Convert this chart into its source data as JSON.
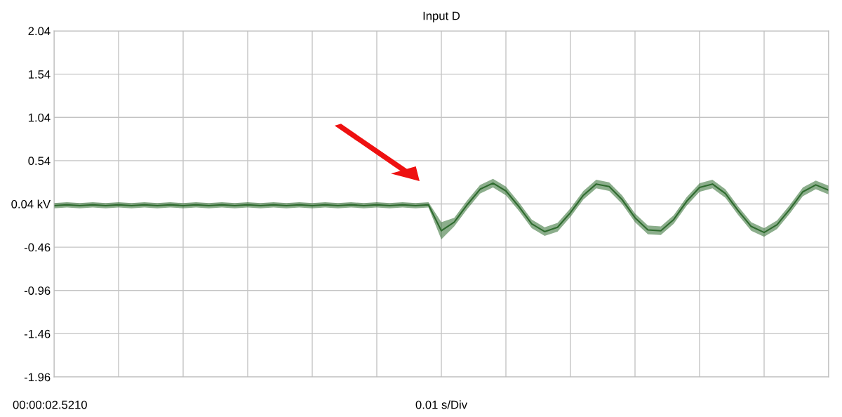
{
  "chart_data": {
    "type": "line",
    "title": "Input D",
    "annotations": [
      "00:00:02.5210",
      "0.01 s/Div"
    ],
    "categories": [
      null,
      null,
      null,
      null,
      null,
      null,
      null,
      null,
      null,
      null,
      null,
      null,
      null,
      null,
      null,
      null,
      null,
      null,
      null,
      null,
      null,
      null,
      null,
      null,
      null,
      null,
      null,
      null,
      null,
      null,
      null,
      null,
      null,
      null,
      null,
      null,
      null,
      null,
      null,
      null,
      null,
      null,
      null,
      null,
      null,
      null,
      null,
      null,
      null,
      null,
      null,
      null,
      null,
      null,
      null,
      null,
      null,
      null,
      null,
      null,
      null
    ],
    "series": [
      {
        "color": "#2e6b2e",
        "values": [
          0.02,
          0.03,
          0.02,
          0.03,
          0.02,
          0.03,
          0.02,
          0.03,
          0.02,
          0.03,
          0.02,
          0.03,
          0.02,
          0.03,
          0.02,
          0.03,
          0.02,
          0.03,
          0.02,
          0.03,
          0.02,
          0.03,
          0.02,
          0.03,
          0.02,
          0.03,
          0.02,
          0.03,
          0.02,
          0.03,
          -0.27,
          -0.17,
          0.03,
          0.21,
          0.28,
          0.19,
          0.01,
          -0.19,
          -0.28,
          -0.23,
          -0.06,
          0.14,
          0.27,
          0.24,
          0.09,
          -0.12,
          -0.26,
          -0.27,
          -0.14,
          0.07,
          0.23,
          0.27,
          0.16,
          -0.04,
          -0.22,
          -0.29,
          -0.2,
          -0.02,
          0.18,
          0.26,
          0.2
        ],
        "lower": [
          -0.01,
          0,
          -0.01,
          0,
          -0.01,
          0,
          -0.01,
          0,
          -0.01,
          0,
          -0.01,
          0,
          -0.01,
          0,
          -0.01,
          0,
          -0.01,
          0,
          -0.01,
          0,
          -0.01,
          0,
          -0.01,
          0,
          -0.01,
          0,
          -0.01,
          0,
          -0.01,
          0,
          -0.37,
          -0.22,
          -0.02,
          0.16,
          0.23,
          0.14,
          -0.04,
          -0.24,
          -0.33,
          -0.28,
          -0.11,
          0.09,
          0.22,
          0.19,
          0.04,
          -0.17,
          -0.31,
          -0.32,
          -0.19,
          0.02,
          0.18,
          0.22,
          0.11,
          -0.09,
          -0.27,
          -0.34,
          -0.25,
          -0.07,
          0.13,
          0.21,
          0.15
        ],
        "upper": [
          0.05,
          0.06,
          0.05,
          0.06,
          0.05,
          0.06,
          0.05,
          0.06,
          0.05,
          0.06,
          0.05,
          0.06,
          0.05,
          0.06,
          0.05,
          0.06,
          0.05,
          0.06,
          0.05,
          0.06,
          0.05,
          0.06,
          0.05,
          0.06,
          0.05,
          0.06,
          0.05,
          0.06,
          0.05,
          0.06,
          -0.17,
          -0.12,
          0.08,
          0.26,
          0.33,
          0.24,
          0.06,
          -0.14,
          -0.23,
          -0.18,
          -0.01,
          0.19,
          0.32,
          0.29,
          0.14,
          -0.07,
          -0.21,
          -0.22,
          -0.09,
          0.12,
          0.28,
          0.32,
          0.21,
          0.01,
          -0.17,
          -0.24,
          -0.15,
          0.03,
          0.23,
          0.31,
          0.25
        ]
      }
    ],
    "ylim": [
      -1.96,
      2.04
    ],
    "yticks": [
      2.04,
      1.54,
      1.04,
      0.54,
      {
        "value": 0.04,
        "label": "0.04 kV"
      },
      -0.46,
      -0.96,
      -1.46,
      -1.96
    ],
    "grid": true,
    "line_style": "solid",
    "marker": "none"
  }
}
